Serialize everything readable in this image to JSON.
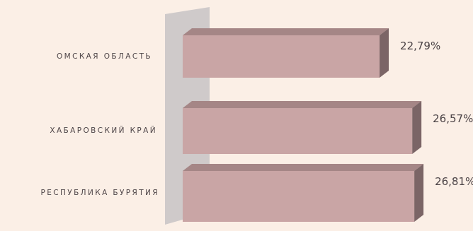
{
  "chart_data": {
    "type": "bar",
    "orientation": "horizontal",
    "style": "3d",
    "categories": [
      "ОМСКАЯ ОБЛАСТЬ",
      "ХАБАРОВСКИЙ КРАЙ",
      "РЕСПУБЛИКА БУРЯТИЯ"
    ],
    "values": [
      22.79,
      26.57,
      26.81
    ],
    "value_labels": [
      "22,79%",
      "26,57%",
      "26,81%"
    ],
    "xlim": [
      0,
      30
    ],
    "grid": false,
    "legend": "none",
    "colors": {
      "background": "#fbefe6",
      "bar_front": "#c9a5a5",
      "bar_top": "#a58686",
      "bar_side": "#7b6566",
      "wall": "#cfcaca"
    }
  }
}
